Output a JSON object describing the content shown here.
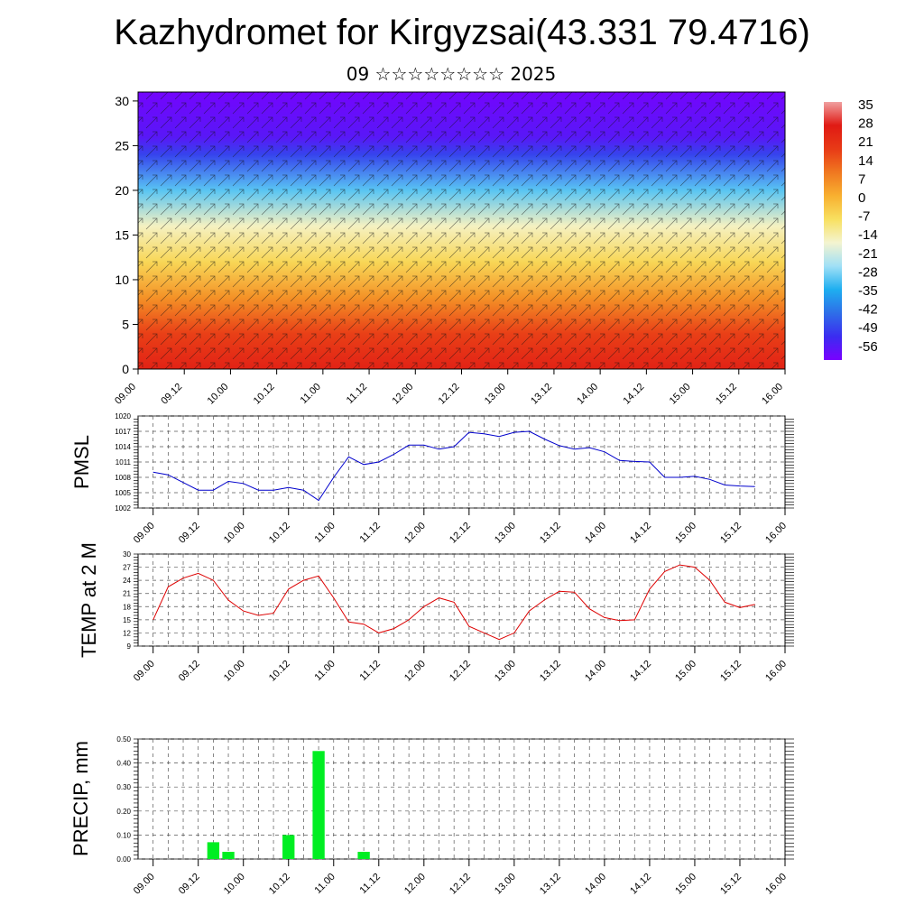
{
  "page": {
    "title": "Kazhydromet for Kirgyzsai(43.331 79.4716)",
    "subtitle": "09 ☆☆☆☆☆☆☆☆ 2025"
  },
  "colors": {
    "pmsl_line": "#0000cc",
    "temp_line": "#dd0000",
    "precip_bar": "#00ee22",
    "grid": "#555555"
  },
  "chart_data": [
    {
      "id": "cross-section",
      "type": "heatmap",
      "x_ticks": [
        "09.00",
        "09.12",
        "10.00",
        "10.12",
        "11.00",
        "11.12",
        "12.00",
        "12.12",
        "13.00",
        "13.12",
        "14.00",
        "14.12",
        "15.00",
        "15.12",
        "16.00"
      ],
      "y_ticks": [
        0,
        5,
        10,
        15,
        20,
        25,
        30
      ],
      "ylim": [
        0,
        31
      ],
      "colorbar_labels": [
        "35",
        "28",
        "21",
        "14",
        "7",
        "0",
        "-7",
        "-14",
        "-21",
        "-28",
        "-35",
        "-42",
        "-49",
        "-56"
      ],
      "colorbar_range": [
        -63,
        42
      ],
      "colorbar_colors": [
        "#7a00ff",
        "#3b2cf0",
        "#2e6ee8",
        "#1eaef0",
        "#a0e0f6",
        "#f4f4d0",
        "#f8e060",
        "#f8b030",
        "#f07820",
        "#e83a16",
        "#e01a14",
        "#f0a0a0"
      ],
      "layers": [
        {
          "z": 0,
          "value": 30
        },
        {
          "z": 4,
          "value": 22
        },
        {
          "z": 8,
          "value": 9
        },
        {
          "z": 12,
          "value": -4
        },
        {
          "z": 16,
          "value": -14
        },
        {
          "z": 20,
          "value": -30
        },
        {
          "z": 24,
          "value": -50
        },
        {
          "z": 26,
          "value": -58
        },
        {
          "z": 31,
          "value": -62
        }
      ]
    },
    {
      "id": "pmsl",
      "type": "line",
      "ylabel": "PMSL",
      "y_ticks": [
        1002,
        1005,
        1008,
        1011,
        1014,
        1017,
        1020
      ],
      "ylim": [
        1002,
        1020
      ],
      "x_ticks": [
        "09.00",
        "09.12",
        "10.00",
        "10.12",
        "11.00",
        "11.12",
        "12.00",
        "12.12",
        "13.00",
        "13.12",
        "14.00",
        "14.12",
        "15.00",
        "15.12",
        "16.00"
      ],
      "xlim": [
        -1,
        42
      ],
      "x": [
        0,
        1,
        2,
        3,
        4,
        5,
        6,
        7,
        8,
        9,
        10,
        11,
        12,
        13,
        14,
        15,
        16,
        17,
        18,
        19,
        20,
        21,
        22,
        23,
        24,
        25,
        26,
        27,
        28,
        29,
        30,
        31,
        32,
        33,
        34,
        35,
        36,
        37,
        38,
        39,
        40
      ],
      "values": [
        1009,
        1008.5,
        1007,
        1005.5,
        1005.5,
        1007.2,
        1006.8,
        1005.5,
        1005.5,
        1006,
        1005.5,
        1003.5,
        1008,
        1012,
        1010.5,
        1011,
        1012.5,
        1014.3,
        1014.3,
        1013.5,
        1014,
        1016.8,
        1016.5,
        1016,
        1016.8,
        1017,
        1015.5,
        1014.2,
        1013.5,
        1013.8,
        1013,
        1011.3,
        1011.1,
        1011,
        1008,
        1008,
        1008.2,
        1007.6,
        1006.5,
        1006.3,
        1006.2
      ]
    },
    {
      "id": "temp",
      "type": "line",
      "ylabel": "TEMP at 2 M",
      "y_ticks": [
        9,
        12,
        15,
        18,
        21,
        24,
        27,
        30
      ],
      "ylim": [
        9,
        30
      ],
      "x_ticks": [
        "09.00",
        "09.12",
        "10.00",
        "10.12",
        "11.00",
        "11.12",
        "12.00",
        "12.12",
        "13.00",
        "13.12",
        "14.00",
        "14.12",
        "15.00",
        "15.12",
        "16.00"
      ],
      "xlim": [
        -1,
        42
      ],
      "x": [
        0,
        1,
        2,
        3,
        4,
        5,
        6,
        7,
        8,
        9,
        10,
        11,
        12,
        13,
        14,
        15,
        16,
        17,
        18,
        19,
        20,
        21,
        22,
        23,
        24,
        25,
        26,
        27,
        28,
        29,
        30,
        31,
        32,
        33,
        34,
        35,
        36,
        37,
        38,
        39,
        40
      ],
      "values": [
        15,
        22.5,
        24.5,
        25.6,
        24,
        19.5,
        17,
        16,
        16.5,
        22,
        24,
        25,
        20,
        14.5,
        14,
        12,
        13,
        15,
        18,
        20,
        19,
        13.5,
        12,
        10.5,
        12,
        17,
        19.5,
        21.5,
        21.3,
        17.5,
        15.5,
        14.8,
        15,
        22,
        26,
        27.5,
        27,
        24,
        19,
        17.8,
        18.5
      ]
    },
    {
      "id": "precip",
      "type": "bar",
      "ylabel": "PRECIP, mm",
      "y_ticks": [
        "0.00",
        "0.10",
        "0.20",
        "0.30",
        "0.40",
        "0.50"
      ],
      "ylim": [
        0,
        0.5
      ],
      "x_ticks": [
        "09.00",
        "09.12",
        "10.00",
        "10.12",
        "11.00",
        "11.12",
        "12.00",
        "12.12",
        "13.00",
        "13.12",
        "14.00",
        "14.12",
        "15.00",
        "15.12",
        "16.00"
      ],
      "xlim": [
        -1,
        42
      ],
      "x": [
        0,
        1,
        2,
        3,
        4,
        5,
        6,
        7,
        8,
        9,
        10,
        11,
        12,
        13,
        14,
        15,
        16,
        17,
        18,
        19,
        20,
        21,
        22,
        23,
        24,
        25,
        26,
        27,
        28,
        29,
        30,
        31,
        32,
        33,
        34,
        35,
        36,
        37,
        38,
        39,
        40
      ],
      "values": [
        0,
        0,
        0,
        0,
        0.07,
        0.03,
        0,
        0,
        0,
        0.1,
        0,
        0.45,
        0,
        0,
        0.03,
        0,
        0,
        0,
        0,
        0,
        0,
        0,
        0,
        0,
        0,
        0,
        0,
        0,
        0,
        0,
        0,
        0,
        0,
        0,
        0,
        0,
        0,
        0,
        0,
        0,
        0
      ]
    }
  ]
}
